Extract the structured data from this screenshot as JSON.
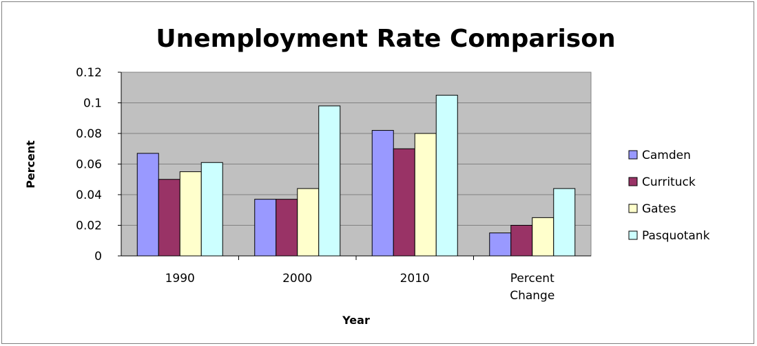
{
  "chart_data": {
    "type": "bar",
    "title": "Unemployment Rate Comparison",
    "xlabel": "Year",
    "ylabel": "Percent",
    "categories": [
      "1990",
      "2000",
      "2010",
      "Percent Change"
    ],
    "category_lines": [
      [
        "1990"
      ],
      [
        "2000"
      ],
      [
        "2010"
      ],
      [
        "Percent",
        "Change"
      ]
    ],
    "ylim": [
      0,
      0.12
    ],
    "yticks": [
      "0",
      "0.02",
      "0.04",
      "0.06",
      "0.08",
      "0.1",
      "0.12"
    ],
    "grid": true,
    "legend_position": "right",
    "series": [
      {
        "name": "Camden",
        "color": "#9999ff",
        "values": [
          0.067,
          0.037,
          0.082,
          0.015
        ]
      },
      {
        "name": "Currituck",
        "color": "#993366",
        "values": [
          0.05,
          0.037,
          0.07,
          0.02
        ]
      },
      {
        "name": "Gates",
        "color": "#ffffcc",
        "values": [
          0.055,
          0.044,
          0.08,
          0.025
        ]
      },
      {
        "name": "Pasquotank",
        "color": "#ccffff",
        "values": [
          0.061,
          0.098,
          0.105,
          0.044
        ]
      }
    ],
    "plot_background": "#c0c0c0"
  }
}
